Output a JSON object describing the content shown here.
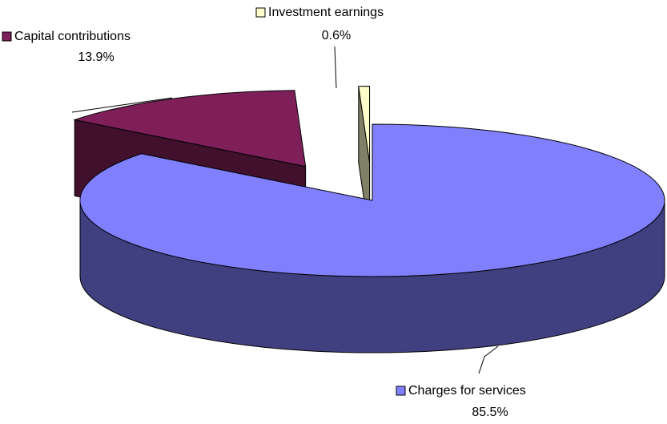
{
  "chart_data": {
    "type": "pie",
    "categories": [
      "Charges for services",
      "Capital contributions",
      "Investment earnings"
    ],
    "values": [
      85.5,
      13.9,
      0.6
    ],
    "value_labels": [
      "85.5%",
      "13.9%",
      "0.6%"
    ],
    "colors": [
      "#8080ff",
      "#7f1f5a",
      "#ffffcc"
    ]
  }
}
